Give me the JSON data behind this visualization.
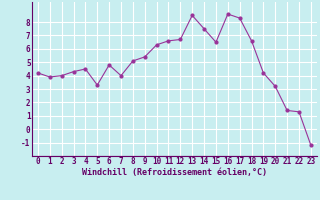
{
  "x": [
    0,
    1,
    2,
    3,
    4,
    5,
    6,
    7,
    8,
    9,
    10,
    11,
    12,
    13,
    14,
    15,
    16,
    17,
    18,
    19,
    20,
    21,
    22,
    23
  ],
  "y": [
    4.2,
    3.9,
    4.0,
    4.3,
    4.5,
    3.3,
    4.8,
    4.0,
    5.1,
    5.4,
    6.3,
    6.6,
    6.7,
    8.5,
    7.5,
    6.5,
    8.6,
    8.3,
    6.6,
    4.2,
    3.2,
    1.4,
    1.3,
    -1.2
  ],
  "line_color": "#993399",
  "marker": "o",
  "marker_size": 2.0,
  "bg_color": "#c8eef0",
  "grid_color": "#ffffff",
  "xlabel": "Windchill (Refroidissement éolien,°C)",
  "ylabel_ticks": [
    -1,
    0,
    1,
    2,
    3,
    4,
    5,
    6,
    7,
    8
  ],
  "xlabel_ticks": [
    0,
    1,
    2,
    3,
    4,
    5,
    6,
    7,
    8,
    9,
    10,
    11,
    12,
    13,
    14,
    15,
    16,
    17,
    18,
    19,
    20,
    21,
    22,
    23
  ],
  "xlim": [
    -0.5,
    23.5
  ],
  "ylim": [
    -2.0,
    9.5
  ],
  "xlabel_fontsize": 6.0,
  "tick_fontsize": 5.5,
  "label_color": "#660066",
  "spine_color": "#660066",
  "axis_bg": "#c8eef0",
  "title_bg": "#7b68ee"
}
